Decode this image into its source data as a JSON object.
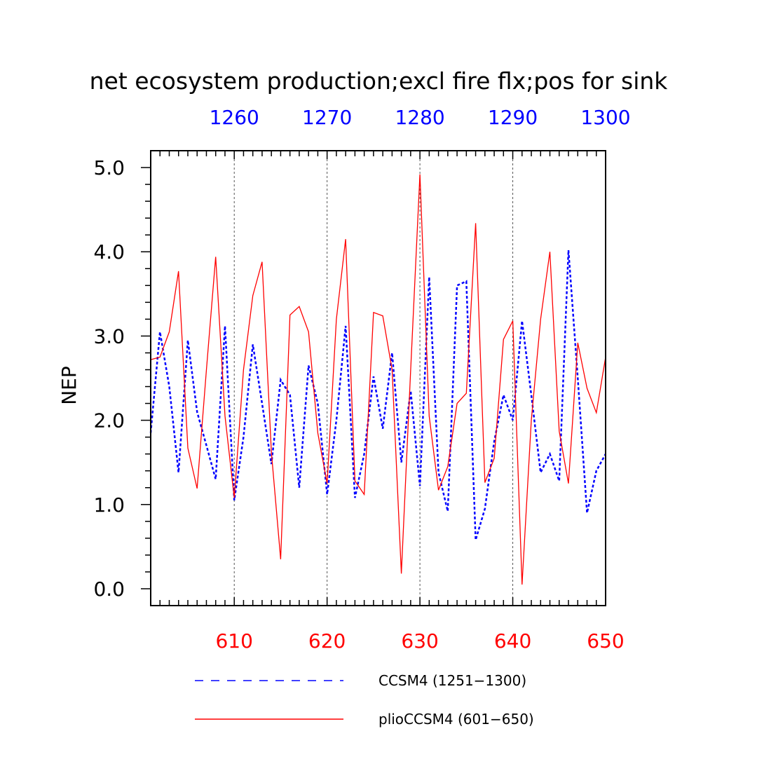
{
  "chart_data": {
    "type": "line",
    "title": "net ecosystem production;excl fire flx;pos for sink",
    "ylabel": "NEP",
    "xlabel": "",
    "ylim": [
      -0.2,
      5.2
    ],
    "yticks_major": [
      0.0,
      1.0,
      2.0,
      3.0,
      4.0,
      5.0
    ],
    "ytick_labels": [
      "0.0",
      "1.0",
      "2.0",
      "3.0",
      "4.0",
      "5.0"
    ],
    "x_bottom": {
      "range": [
        601,
        650
      ],
      "ticks": [
        610,
        620,
        630,
        640,
        650
      ],
      "tick_labels": [
        "610",
        "620",
        "630",
        "640",
        "650"
      ],
      "color": "#ff0000"
    },
    "x_top": {
      "range": [
        1251,
        1300
      ],
      "ticks": [
        1260,
        1270,
        1280,
        1290,
        1300
      ],
      "tick_labels": [
        "1260",
        "1270",
        "1280",
        "1290",
        "1300"
      ],
      "color": "#0000ff"
    },
    "grid": "vertical dashed at major x ticks",
    "legend_position": "bottom",
    "series": [
      {
        "name": "CCSM4 (1251−1300)",
        "axis": "top",
        "color": "#0000ff",
        "style": "dashed",
        "x": [
          1251,
          1252,
          1253,
          1254,
          1255,
          1256,
          1257,
          1258,
          1259,
          1260,
          1261,
          1262,
          1263,
          1264,
          1265,
          1266,
          1267,
          1268,
          1269,
          1270,
          1271,
          1272,
          1273,
          1274,
          1275,
          1276,
          1277,
          1278,
          1279,
          1280,
          1281,
          1282,
          1283,
          1284,
          1285,
          1286,
          1287,
          1288,
          1289,
          1290,
          1291,
          1292,
          1293,
          1294,
          1295,
          1296,
          1297,
          1298,
          1299,
          1300
        ],
        "values": [
          1.85,
          3.05,
          2.4,
          1.38,
          2.95,
          2.1,
          1.7,
          1.3,
          3.12,
          1.05,
          1.8,
          2.9,
          2.2,
          1.48,
          2.48,
          2.3,
          1.2,
          2.65,
          2.2,
          1.12,
          2.0,
          3.12,
          1.08,
          1.6,
          2.52,
          1.9,
          2.8,
          1.5,
          2.35,
          1.22,
          3.7,
          1.38,
          0.92,
          3.6,
          3.65,
          0.58,
          0.95,
          1.75,
          2.3,
          2.0,
          3.18,
          2.3,
          1.38,
          1.6,
          1.28,
          4.02,
          2.5,
          0.9,
          1.4,
          1.6
        ]
      },
      {
        "name": "plioCCSM4 (601−650)",
        "axis": "bottom",
        "color": "#ff0000",
        "style": "solid",
        "x": [
          601,
          602,
          603,
          604,
          605,
          606,
          607,
          608,
          609,
          610,
          611,
          612,
          613,
          614,
          615,
          616,
          617,
          618,
          619,
          620,
          621,
          622,
          623,
          624,
          625,
          626,
          627,
          628,
          629,
          630,
          631,
          632,
          633,
          634,
          635,
          636,
          637,
          638,
          639,
          640,
          641,
          642,
          643,
          644,
          645,
          646,
          647,
          648,
          649,
          650
        ],
        "values": [
          2.72,
          2.75,
          3.05,
          3.77,
          1.67,
          1.19,
          2.6,
          3.94,
          2.05,
          1.08,
          2.6,
          3.48,
          3.88,
          1.62,
          0.35,
          3.25,
          3.35,
          3.05,
          1.85,
          1.25,
          3.2,
          4.15,
          1.28,
          1.12,
          3.28,
          3.24,
          2.6,
          0.18,
          2.6,
          4.92,
          2.05,
          1.17,
          1.45,
          2.2,
          2.32,
          4.34,
          1.26,
          1.55,
          2.96,
          3.18,
          0.05,
          2.0,
          3.2,
          4.0,
          1.87,
          1.25,
          2.92,
          2.38,
          2.09,
          2.75
        ]
      }
    ]
  }
}
